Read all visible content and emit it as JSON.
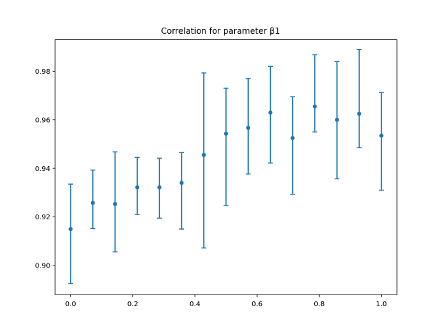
{
  "chart_data": {
    "type": "scatter",
    "title": "Correlation for parameter β1",
    "xlabel": "",
    "ylabel": "",
    "xlim": [
      -0.05,
      1.05
    ],
    "ylim": [
      0.888,
      0.993
    ],
    "x_ticks": [
      {
        "value": 0.0,
        "label": "0.0"
      },
      {
        "value": 0.2,
        "label": "0.2"
      },
      {
        "value": 0.4,
        "label": "0.4"
      },
      {
        "value": 0.6,
        "label": "0.6"
      },
      {
        "value": 0.8,
        "label": "0.8"
      },
      {
        "value": 1.0,
        "label": "1.0"
      }
    ],
    "y_ticks": [
      {
        "value": 0.9,
        "label": "0.90"
      },
      {
        "value": 0.92,
        "label": "0.92"
      },
      {
        "value": 0.94,
        "label": "0.94"
      },
      {
        "value": 0.96,
        "label": "0.96"
      },
      {
        "value": 0.98,
        "label": "0.98"
      }
    ],
    "grid": false,
    "legend": "none",
    "color": "#1f77b4",
    "points": [
      {
        "x": 0.0,
        "y": 0.915,
        "low": 0.8925,
        "high": 0.9335
      },
      {
        "x": 0.0714,
        "y": 0.9258,
        "low": 0.9152,
        "high": 0.9393
      },
      {
        "x": 0.1429,
        "y": 0.9253,
        "low": 0.9056,
        "high": 0.9468
      },
      {
        "x": 0.2143,
        "y": 0.9322,
        "low": 0.921,
        "high": 0.9445
      },
      {
        "x": 0.2857,
        "y": 0.9322,
        "low": 0.9195,
        "high": 0.9442
      },
      {
        "x": 0.3571,
        "y": 0.934,
        "low": 0.915,
        "high": 0.9465
      },
      {
        "x": 0.4286,
        "y": 0.9455,
        "low": 0.9072,
        "high": 0.9793
      },
      {
        "x": 0.5,
        "y": 0.9543,
        "low": 0.9247,
        "high": 0.973
      },
      {
        "x": 0.5714,
        "y": 0.9567,
        "low": 0.9377,
        "high": 0.977
      },
      {
        "x": 0.6429,
        "y": 0.963,
        "low": 0.9422,
        "high": 0.982
      },
      {
        "x": 0.7143,
        "y": 0.9525,
        "low": 0.9293,
        "high": 0.9695
      },
      {
        "x": 0.7857,
        "y": 0.9655,
        "low": 0.955,
        "high": 0.9868
      },
      {
        "x": 0.8571,
        "y": 0.96,
        "low": 0.9357,
        "high": 0.984
      },
      {
        "x": 0.9286,
        "y": 0.9625,
        "low": 0.9485,
        "high": 0.989
      },
      {
        "x": 1.0,
        "y": 0.9535,
        "low": 0.931,
        "high": 0.9712
      }
    ]
  }
}
